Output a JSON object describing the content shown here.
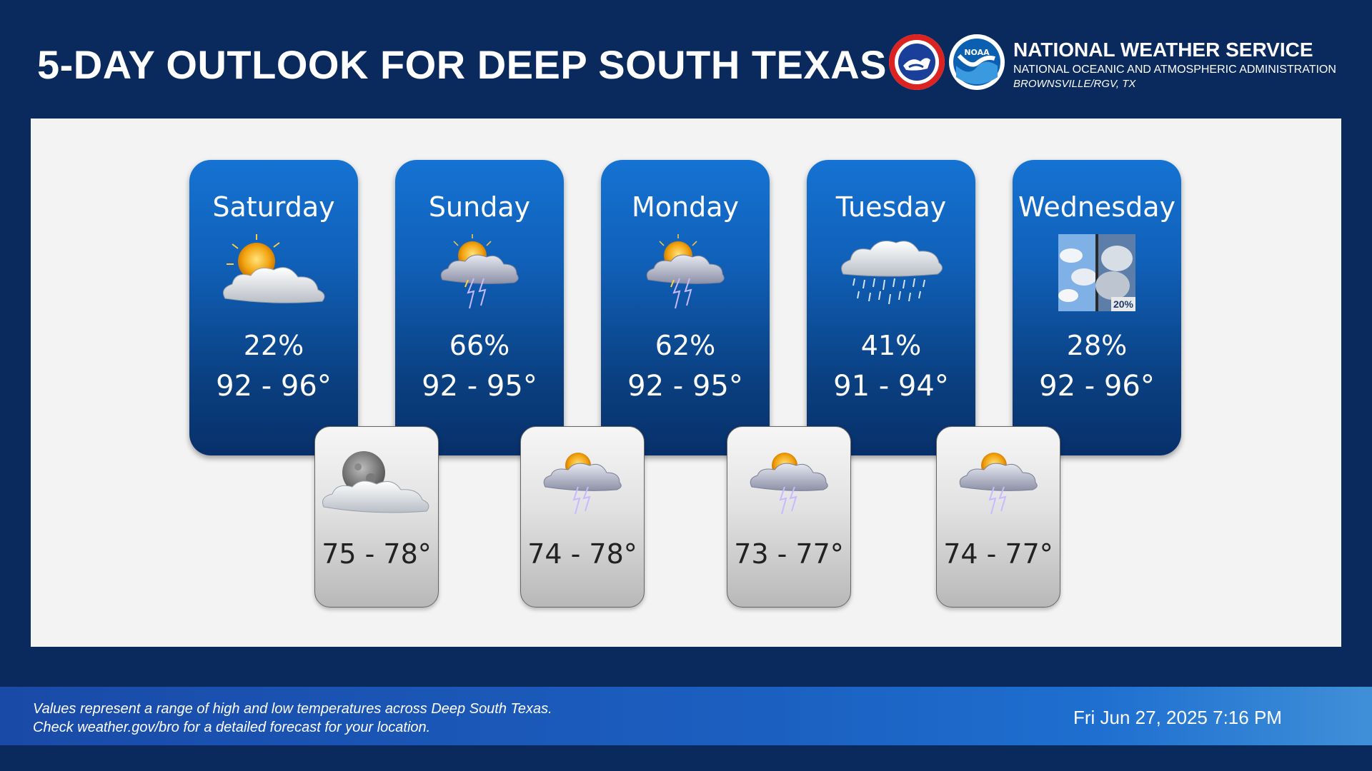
{
  "header": {
    "title": "5-DAY OUTLOOK FOR DEEP SOUTH TEXAS",
    "org_name": "NATIONAL WEATHER SERVICE",
    "org_sub": "NATIONAL OCEANIC AND ATMOSPHERIC ADMINISTRATION",
    "org_location": "BROWNSVILLE/RGV, TX",
    "logo_left": "nws-logo",
    "logo_right": "noaa-logo",
    "noaa_text": "NOAA"
  },
  "days": [
    {
      "name": "Saturday",
      "pop": "22%",
      "temp": "92 - 96°",
      "icon": "partly-cloudy-icon"
    },
    {
      "name": "Sunday",
      "pop": "66%",
      "temp": "92 - 95°",
      "icon": "thunderstorm-icon"
    },
    {
      "name": "Monday",
      "pop": "62%",
      "temp": "92 - 95°",
      "icon": "thunderstorm-icon"
    },
    {
      "name": "Tuesday",
      "pop": "41%",
      "temp": "91 - 94°",
      "icon": "rain-showers-icon"
    },
    {
      "name": "Wednesday",
      "pop": "28%",
      "temp": "92 - 96°",
      "icon": "split-sky-icon",
      "icon_badge": "20%"
    }
  ],
  "nights": [
    {
      "temp": "75 - 78°",
      "icon": "cloudy-moon-icon"
    },
    {
      "temp": "74 - 78°",
      "icon": "thunderstorm-icon"
    },
    {
      "temp": "73 - 77°",
      "icon": "thunderstorm-icon"
    },
    {
      "temp": "74 - 77°",
      "icon": "thunderstorm-icon"
    }
  ],
  "footer": {
    "note_line1": "Values represent a range of high and low temperatures across Deep South Texas.",
    "note_line2": "Check weather.gov/bro for a detailed forecast for your location.",
    "issued": "Fri Jun 27, 2025 7:16 PM"
  },
  "colors": {
    "background": "#0a2a5e",
    "card_top": "#1573d3",
    "card_bottom": "#08306a",
    "panel": "#f3f3f3"
  }
}
